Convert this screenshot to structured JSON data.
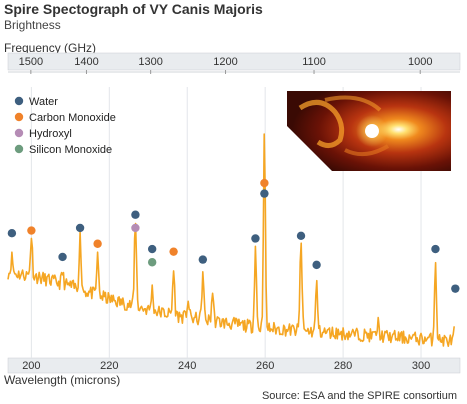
{
  "chart_data": {
    "type": "line",
    "title": "Spire Spectograph of VY Canis Majoris",
    "ylabel": "Brightness",
    "xlabel": "Wavelength (microns)",
    "x2label": "Frequency (GHz)",
    "source": "Source: ESA and the SPIRE consortium",
    "xlim": [
      194,
      310
    ],
    "xticks": [
      200,
      220,
      240,
      260,
      280,
      300
    ],
    "x2ticks": [
      1500,
      1400,
      1300,
      1200,
      1100,
      1000
    ],
    "grid": "vertical",
    "legend_position": "top-left",
    "line_color": "#f5a623",
    "legend": [
      {
        "name": "Water",
        "color": "#3e5f7f"
      },
      {
        "name": "Carbon Monoxide",
        "color": "#f0822a"
      },
      {
        "name": "Hydroxyl",
        "color": "#b58cb5"
      },
      {
        "name": "Silicon Monoxide",
        "color": "#6d9c7e"
      }
    ],
    "baseline": [
      [
        194,
        0.3
      ],
      [
        200,
        0.29
      ],
      [
        210,
        0.25
      ],
      [
        220,
        0.2
      ],
      [
        230,
        0.16
      ],
      [
        240,
        0.13
      ],
      [
        250,
        0.11
      ],
      [
        260,
        0.09
      ],
      [
        270,
        0.08
      ],
      [
        280,
        0.07
      ],
      [
        290,
        0.06
      ],
      [
        300,
        0.05
      ],
      [
        310,
        0.04
      ]
    ],
    "peaks": [
      {
        "x": 195.0,
        "y": 0.36
      },
      {
        "x": 200.0,
        "y": 0.44
      },
      {
        "x": 208.0,
        "y": 0.3
      },
      {
        "x": 212.5,
        "y": 0.44
      },
      {
        "x": 217.0,
        "y": 0.36
      },
      {
        "x": 226.7,
        "y": 0.51
      },
      {
        "x": 231.0,
        "y": 0.24
      },
      {
        "x": 236.5,
        "y": 0.31
      },
      {
        "x": 240.2,
        "y": 0.2
      },
      {
        "x": 244.0,
        "y": 0.3
      },
      {
        "x": 246.5,
        "y": 0.23
      },
      {
        "x": 257.5,
        "y": 0.4
      },
      {
        "x": 259.8,
        "y": 0.82
      },
      {
        "x": 269.2,
        "y": 0.43
      },
      {
        "x": 273.2,
        "y": 0.26
      },
      {
        "x": 289.0,
        "y": 0.11
      },
      {
        "x": 303.7,
        "y": 0.35
      },
      {
        "x": 308.8,
        "y": 0.13
      }
    ],
    "markers": [
      {
        "x": 195.0,
        "y": 0.45,
        "species": "Water"
      },
      {
        "x": 200.0,
        "y": 0.46,
        "species": "Carbon Monoxide"
      },
      {
        "x": 208.0,
        "y": 0.36,
        "species": "Water"
      },
      {
        "x": 212.5,
        "y": 0.47,
        "species": "Water"
      },
      {
        "x": 217.0,
        "y": 0.41,
        "species": "Carbon Monoxide"
      },
      {
        "x": 226.7,
        "y": 0.52,
        "species": "Water"
      },
      {
        "x": 226.7,
        "y": 0.47,
        "species": "Hydroxyl"
      },
      {
        "x": 231.0,
        "y": 0.39,
        "species": "Water"
      },
      {
        "x": 231.0,
        "y": 0.34,
        "species": "Silicon Monoxide"
      },
      {
        "x": 236.5,
        "y": 0.38,
        "species": "Carbon Monoxide"
      },
      {
        "x": 244.0,
        "y": 0.35,
        "species": "Water"
      },
      {
        "x": 257.5,
        "y": 0.43,
        "species": "Water"
      },
      {
        "x": 259.8,
        "y": 0.64,
        "species": "Carbon Monoxide"
      },
      {
        "x": 259.8,
        "y": 0.6,
        "species": "Water"
      },
      {
        "x": 269.2,
        "y": 0.44,
        "species": "Water"
      },
      {
        "x": 273.2,
        "y": 0.33,
        "species": "Water"
      },
      {
        "x": 303.7,
        "y": 0.39,
        "species": "Water"
      },
      {
        "x": 308.8,
        "y": 0.24,
        "species": "Water"
      }
    ]
  }
}
